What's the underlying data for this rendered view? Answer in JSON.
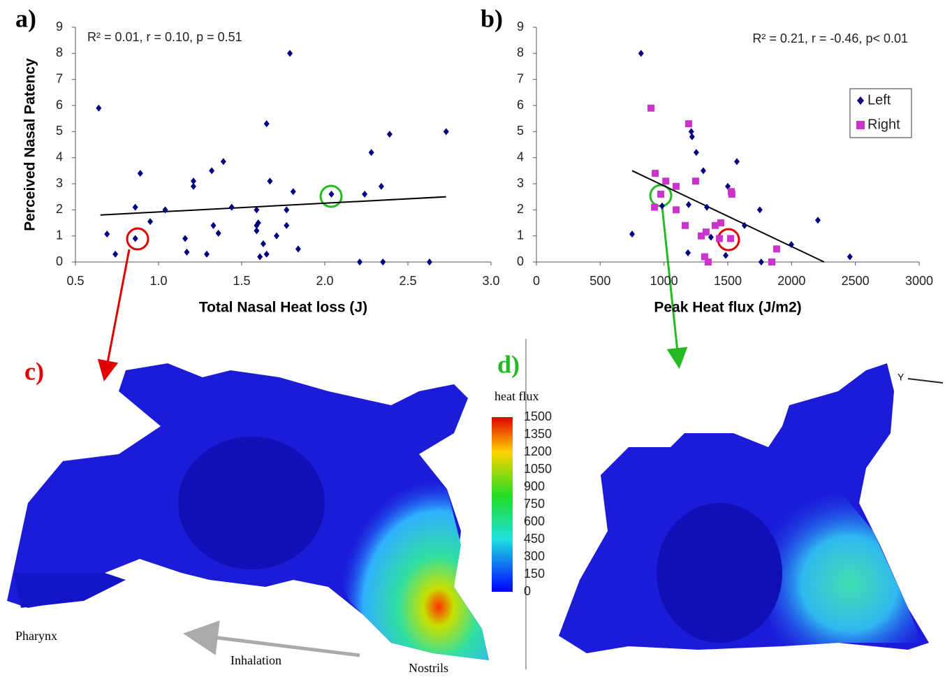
{
  "chart_data": [
    {
      "type": "scatter",
      "panel": "a)",
      "annotation": "R² = 0.01, r = 0.10, p = 0.51",
      "x_label": "Total Nasal Heat loss (J)",
      "y_label": "Perceived Nasal Patency",
      "xlim": [
        0.5,
        3.0
      ],
      "ylim": [
        0,
        9
      ],
      "xticks": [
        0.5,
        {
          "value": 1,
          "label": "1.0"
        },
        1.5,
        {
          "value": 2,
          "label": "2.0"
        },
        2.5,
        {
          "value": 3,
          "label": "3.0"
        }
      ],
      "yticks": [
        0,
        1,
        2,
        3,
        4,
        5,
        6,
        7,
        8,
        9
      ],
      "series": [
        {
          "color": "#000080",
          "marker": "diamond",
          "x": [
            0.64,
            0.69,
            0.74,
            0.86,
            0.86,
            0.89,
            0.95,
            1.04,
            1.16,
            1.17,
            1.21,
            1.21,
            1.29,
            1.32,
            1.33,
            1.36,
            1.39,
            1.44,
            1.59,
            1.59,
            1.59,
            1.6,
            1.61,
            1.63,
            1.65,
            1.65,
            1.67,
            1.71,
            1.77,
            1.77,
            1.79,
            1.81,
            1.84,
            2.04,
            2.21,
            2.24,
            2.28,
            2.34,
            2.35,
            2.39,
            2.63,
            2.73
          ],
          "values": [
            5.9,
            1.07,
            0.3,
            2.1,
            0.9,
            3.4,
            1.55,
            2.0,
            0.9,
            0.38,
            3.1,
            2.9,
            0.3,
            3.5,
            1.4,
            1.1,
            3.85,
            2.1,
            2.0,
            1.4,
            1.2,
            1.5,
            0.2,
            0.7,
            5.3,
            0.3,
            3.1,
            1.0,
            2.0,
            1.4,
            8.0,
            2.7,
            0.5,
            2.6,
            0,
            2.6,
            4.2,
            2.9,
            0,
            4.9,
            0,
            5.0
          ]
        }
      ],
      "trendline": {
        "color": "#000000",
        "x": [
          0.65,
          2.73
        ],
        "y": [
          1.8,
          2.5
        ]
      }
    },
    {
      "type": "scatter",
      "panel": "b)",
      "annotation": "R² = 0.21, r = -0.46, p< 0.01",
      "x_label": "Peak Heat flux (J/m2)",
      "xlim": [
        0,
        3000
      ],
      "ylim": [
        0,
        9
      ],
      "xticks": [
        0,
        500,
        1000,
        1500,
        2000,
        2500,
        3000
      ],
      "yticks": [
        0,
        1,
        2,
        3,
        4,
        5,
        6,
        7,
        8,
        9
      ],
      "legend": "upper right",
      "series": [
        {
          "name": "Left",
          "color": "#000080",
          "marker": "diamond",
          "x": [
            750,
            820,
            1214,
            1220,
            1253,
            1308,
            1193,
            1336,
            1188,
            1325,
            1368,
            1500,
            1484,
            1571,
            1631,
            1751,
            1762,
            1998,
            2206,
            2457,
            985,
            974
          ],
          "values": [
            1.07,
            8.0,
            5.0,
            4.8,
            4.2,
            3.5,
            2.2,
            2.1,
            0.35,
            0.2,
            0.95,
            2.9,
            0.25,
            3.85,
            1.4,
            2.0,
            0,
            0.67,
            1.6,
            0.2,
            2.15,
            2.6
          ]
        },
        {
          "name": "Right",
          "color": "#cc33cc",
          "marker": "square",
          "x": [
            898,
            931,
            926,
            975,
            1014,
            1095,
            1095,
            1193,
            1166,
            1248,
            1292,
            1330,
            1319,
            1346,
            1401,
            1445,
            1434,
            1522,
            1527,
            1532,
            1845,
            1883
          ],
          "values": [
            5.9,
            3.4,
            2.1,
            2.6,
            3.1,
            2.9,
            2.0,
            5.3,
            1.4,
            3.1,
            1.0,
            1.15,
            0.2,
            0,
            1.4,
            1.5,
            0.9,
            0.9,
            2.7,
            2.6,
            0,
            0.5
          ]
        }
      ],
      "trendline": {
        "color": "#000000",
        "x": [
          750,
          2255
        ],
        "y": [
          3.5,
          0
        ]
      }
    }
  ],
  "panel_c": {
    "label": "c)",
    "pharynx": "Pharynx",
    "inhalation": "Inhalation",
    "nostrils": "Nostrils"
  },
  "panel_d": {
    "label": "d)",
    "axis": "Y"
  },
  "colorbar": {
    "title": "heat flux",
    "range": [
      0,
      1500
    ],
    "ticks": [
      1500,
      1350,
      1200,
      1050,
      900,
      750,
      600,
      450,
      300,
      150,
      0
    ]
  }
}
